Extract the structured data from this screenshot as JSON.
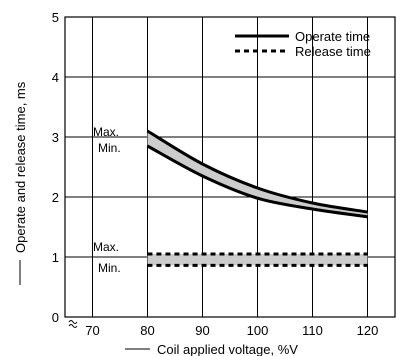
{
  "chart_data": {
    "type": "line",
    "xlabel": "Coil applied voltage, %V",
    "ylabel": "Operate and release time, ms",
    "xlim": [
      65,
      125
    ],
    "ylim": [
      0,
      5
    ],
    "x_ticks": [
      "70",
      "80",
      "90",
      "100",
      "110",
      "120"
    ],
    "y_ticks": [
      "0",
      "1",
      "2",
      "3",
      "4",
      "5"
    ],
    "grid": true,
    "legend": {
      "placement": "top-right",
      "entries": [
        "Operate time",
        "Release time"
      ]
    },
    "series": [
      {
        "name": "Operate time",
        "bound": "Max.",
        "style": "solid",
        "x": [
          80,
          90,
          100,
          110,
          120
        ],
        "y": [
          3.1,
          2.55,
          2.15,
          1.9,
          1.75
        ]
      },
      {
        "name": "Operate time",
        "bound": "Min.",
        "style": "solid",
        "x": [
          80,
          90,
          100,
          110,
          120
        ],
        "y": [
          2.85,
          2.35,
          1.98,
          1.8,
          1.67
        ]
      },
      {
        "name": "Release time",
        "bound": "Max.",
        "style": "dashed",
        "x": [
          80,
          90,
          100,
          110,
          120
        ],
        "y": [
          1.05,
          1.05,
          1.05,
          1.05,
          1.05
        ]
      },
      {
        "name": "Release time",
        "bound": "Min.",
        "style": "dashed",
        "x": [
          80,
          90,
          100,
          110,
          120
        ],
        "y": [
          0.86,
          0.86,
          0.86,
          0.86,
          0.86
        ]
      }
    ],
    "annotations": {
      "operate_max": "Max.",
      "operate_min": "Min.",
      "release_max": "Max.",
      "release_min": "Min."
    },
    "band_color": "#cccccc",
    "line_color": "#000000"
  }
}
